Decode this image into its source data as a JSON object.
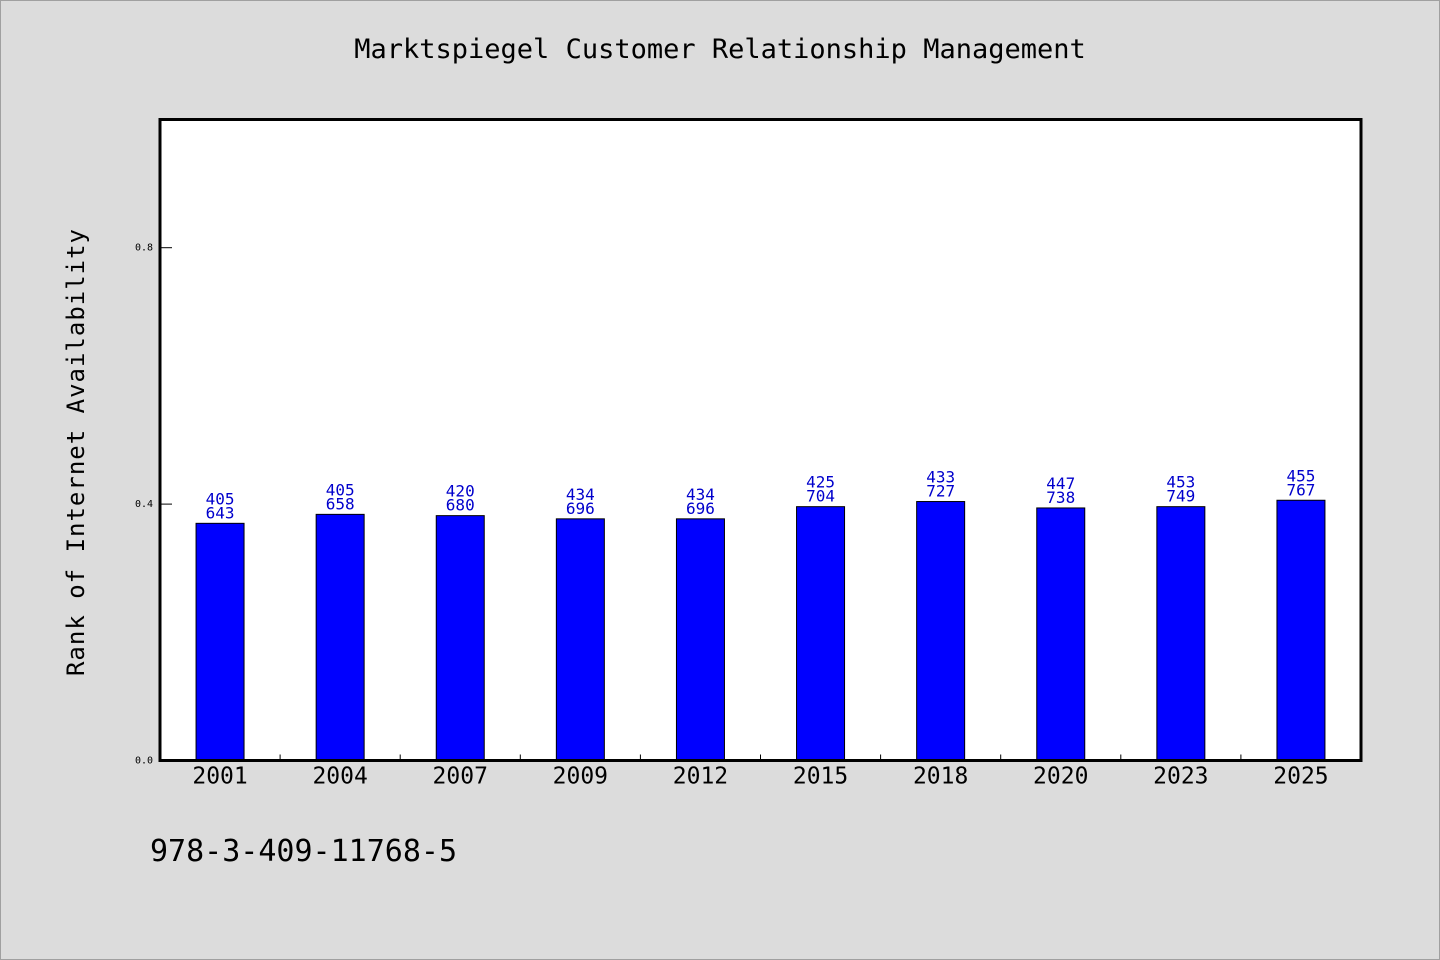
{
  "chart_data": {
    "type": "bar",
    "title": "Marktspiegel Customer Relationship Management",
    "xlabel": "",
    "ylabel": "Rank of Internet Availability",
    "categories": [
      "2001",
      "2004",
      "2007",
      "2009",
      "2012",
      "2015",
      "2018",
      "2020",
      "2023",
      "2025"
    ],
    "values": [
      0.37,
      0.384,
      0.382,
      0.377,
      0.377,
      0.396,
      0.404,
      0.394,
      0.396,
      0.406
    ],
    "data_labels": [
      [
        "405",
        "643"
      ],
      [
        "405",
        "658"
      ],
      [
        "420",
        "680"
      ],
      [
        "434",
        "696"
      ],
      [
        "434",
        "696"
      ],
      [
        "425",
        "704"
      ],
      [
        "433",
        "727"
      ],
      [
        "447",
        "738"
      ],
      [
        "453",
        "749"
      ],
      [
        "455",
        "767"
      ]
    ],
    "ylim": [
      0.0,
      1.0
    ],
    "yticks": [
      "0.0",
      "0.4",
      "0.8"
    ],
    "grid": false,
    "bar_color": "#0000ff",
    "label_color": "#0000cc"
  },
  "footer": {
    "isbn": "978-3-409-11768-5"
  }
}
